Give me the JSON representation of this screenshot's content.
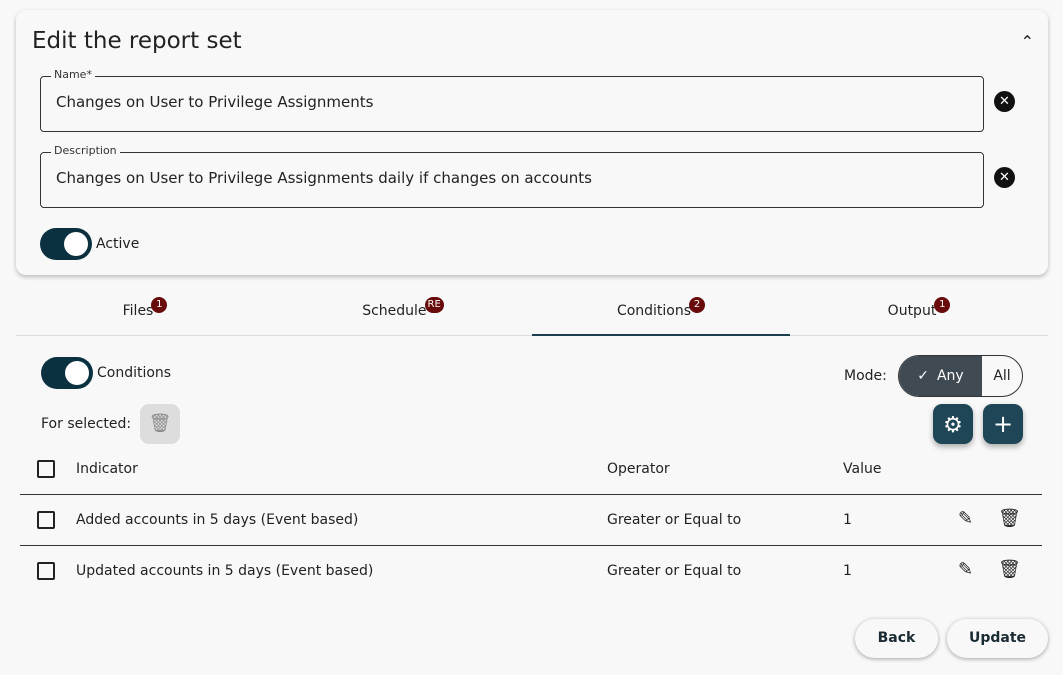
{
  "header": {
    "title": "Edit the report set",
    "collapse_icon": "chevron-up-icon"
  },
  "form": {
    "name": {
      "label": "Name*",
      "value": "Changes on User to Privilege Assignments"
    },
    "description": {
      "label": "Description",
      "value": "Changes on User to Privilege Assignments daily if changes on accounts"
    },
    "active": {
      "label": "Active",
      "on": true
    },
    "clear_symbol": "✕"
  },
  "tabs": [
    {
      "label": "Files",
      "badge": "1"
    },
    {
      "label": "Schedule",
      "badge": "RE"
    },
    {
      "label": "Conditions",
      "badge": "2",
      "active": true
    },
    {
      "label": "Output",
      "badge": "1"
    }
  ],
  "conditions": {
    "toggle_label": "Conditions",
    "toggle_on": true,
    "mode_label": "Mode:",
    "mode_options": [
      "Any",
      "All"
    ],
    "mode_selected": "Any",
    "for_selected": "For selected:",
    "columns": [
      "Indicator",
      "Operator",
      "Value"
    ],
    "rows": [
      {
        "indicator": "Added accounts in 5 days (Event based)",
        "operator": "Greater or Equal to",
        "value": "1"
      },
      {
        "indicator": "Updated accounts in 5 days (Event based)",
        "operator": "Greater or Equal to",
        "value": "1"
      }
    ]
  },
  "footer": {
    "back": "Back",
    "update": "Update"
  },
  "colors": {
    "primary": "#1e4656",
    "toggle": "#0b3140",
    "badge": "#6a0b0b",
    "segment_selected": "#3f4a52"
  }
}
